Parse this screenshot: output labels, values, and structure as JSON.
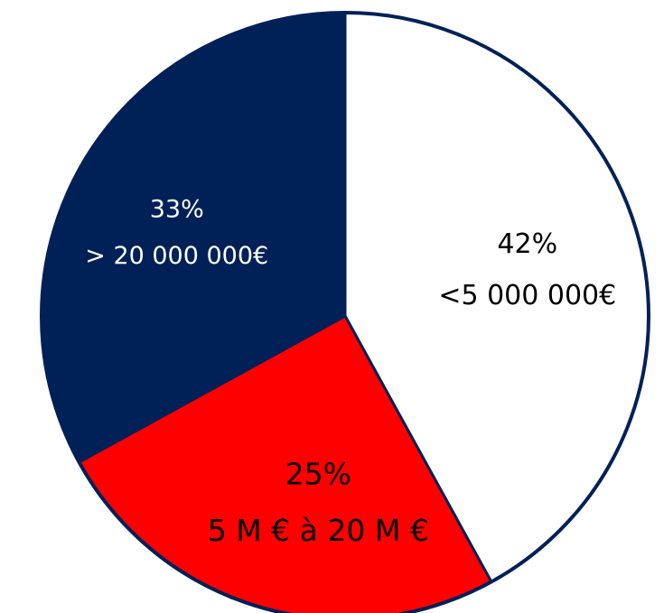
{
  "chart_data": {
    "type": "pie",
    "start_angle_deg": 0,
    "direction": "clockwise",
    "slices": [
      {
        "pct": 42,
        "value_label": "42%",
        "category_label": "<5 000 000€",
        "color": "#ffffff",
        "text_color": "#000000"
      },
      {
        "pct": 25,
        "value_label": "25%",
        "category_label": "5 M € à 20 M €",
        "color": "#ff0000",
        "text_color": "#000000"
      },
      {
        "pct": 33,
        "value_label": "33%",
        "category_label": "> 20 000 000€",
        "color": "#002157",
        "text_color": "#ffffff"
      }
    ],
    "outline_color": "#002157"
  }
}
